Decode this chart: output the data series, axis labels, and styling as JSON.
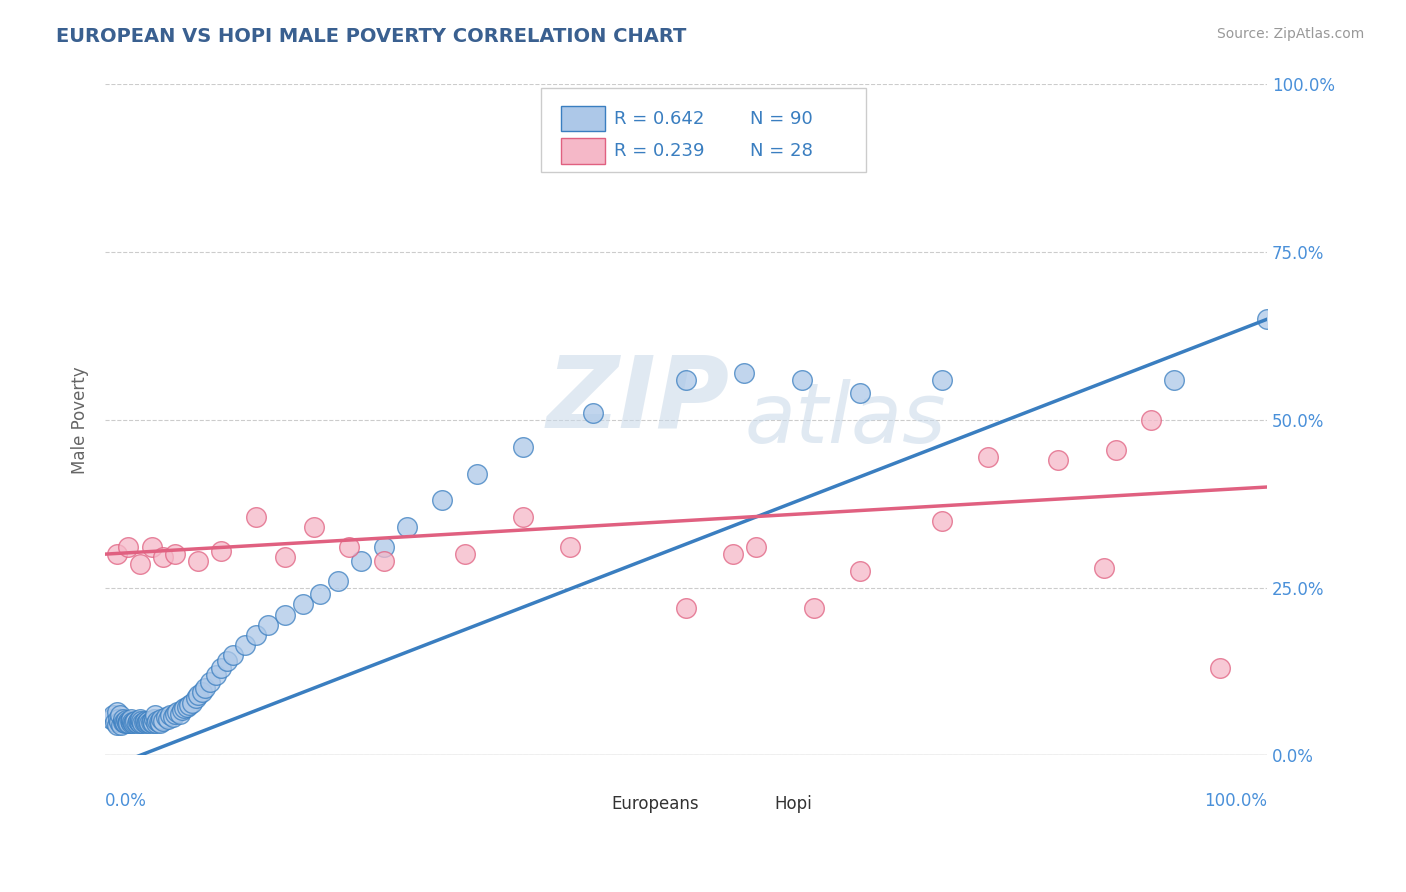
{
  "title": "EUROPEAN VS HOPI MALE POVERTY CORRELATION CHART",
  "source": "Source: ZipAtlas.com",
  "ylabel": "Male Poverty",
  "xlim": [
    0,
    1
  ],
  "ylim": [
    0,
    1
  ],
  "ytick_labels": [
    "0.0%",
    "25.0%",
    "50.0%",
    "75.0%",
    "100.0%"
  ],
  "ytick_positions": [
    0,
    0.25,
    0.5,
    0.75,
    1.0
  ],
  "xtick_labels": [
    "0.0%",
    "100.0%"
  ],
  "european_color": "#adc8e8",
  "hopi_color": "#f5b8c8",
  "european_line_color": "#3a7ec0",
  "hopi_line_color": "#e06080",
  "watermark_zip": "ZIP",
  "watermark_atlas": "atlas",
  "legend_R_european": "R = 0.642",
  "legend_N_european": "N = 90",
  "legend_R_hopi": "R = 0.239",
  "legend_N_hopi": "N = 28",
  "eu_line_x0": 0.0,
  "eu_line_y0": -0.02,
  "eu_line_x1": 1.0,
  "eu_line_y1": 0.65,
  "ho_line_x0": 0.0,
  "ho_line_y0": 0.3,
  "ho_line_x1": 1.0,
  "ho_line_y1": 0.4,
  "european_scatter_x": [
    0.005,
    0.007,
    0.008,
    0.01,
    0.01,
    0.011,
    0.012,
    0.013,
    0.014,
    0.015,
    0.015,
    0.016,
    0.017,
    0.018,
    0.019,
    0.02,
    0.02,
    0.021,
    0.022,
    0.022,
    0.023,
    0.024,
    0.025,
    0.026,
    0.027,
    0.028,
    0.029,
    0.03,
    0.03,
    0.031,
    0.032,
    0.033,
    0.034,
    0.035,
    0.036,
    0.037,
    0.038,
    0.039,
    0.04,
    0.041,
    0.042,
    0.043,
    0.044,
    0.045,
    0.046,
    0.047,
    0.048,
    0.05,
    0.052,
    0.054,
    0.056,
    0.058,
    0.06,
    0.062,
    0.064,
    0.066,
    0.068,
    0.07,
    0.072,
    0.075,
    0.078,
    0.08,
    0.083,
    0.086,
    0.09,
    0.095,
    0.1,
    0.105,
    0.11,
    0.12,
    0.13,
    0.14,
    0.155,
    0.17,
    0.185,
    0.2,
    0.22,
    0.24,
    0.26,
    0.29,
    0.32,
    0.36,
    0.42,
    0.5,
    0.55,
    0.6,
    0.65,
    0.72,
    0.92,
    1.0
  ],
  "european_scatter_y": [
    0.055,
    0.06,
    0.05,
    0.045,
    0.065,
    0.055,
    0.05,
    0.06,
    0.045,
    0.05,
    0.055,
    0.05,
    0.048,
    0.053,
    0.048,
    0.052,
    0.048,
    0.052,
    0.048,
    0.055,
    0.05,
    0.048,
    0.05,
    0.052,
    0.048,
    0.052,
    0.05,
    0.048,
    0.055,
    0.052,
    0.048,
    0.05,
    0.052,
    0.048,
    0.05,
    0.052,
    0.048,
    0.05,
    0.052,
    0.048,
    0.055,
    0.06,
    0.048,
    0.052,
    0.05,
    0.048,
    0.055,
    0.052,
    0.058,
    0.055,
    0.06,
    0.058,
    0.062,
    0.065,
    0.062,
    0.068,
    0.07,
    0.072,
    0.075,
    0.078,
    0.085,
    0.09,
    0.095,
    0.1,
    0.11,
    0.12,
    0.13,
    0.14,
    0.15,
    0.165,
    0.18,
    0.195,
    0.21,
    0.225,
    0.24,
    0.26,
    0.29,
    0.31,
    0.34,
    0.38,
    0.42,
    0.46,
    0.51,
    0.56,
    0.57,
    0.56,
    0.54,
    0.56,
    0.56,
    0.65
  ],
  "hopi_scatter_x": [
    0.01,
    0.02,
    0.03,
    0.04,
    0.05,
    0.06,
    0.08,
    0.1,
    0.13,
    0.155,
    0.18,
    0.21,
    0.24,
    0.31,
    0.36,
    0.4,
    0.5,
    0.54,
    0.56,
    0.61,
    0.65,
    0.72,
    0.76,
    0.82,
    0.86,
    0.87,
    0.9,
    0.96
  ],
  "hopi_scatter_y": [
    0.3,
    0.31,
    0.285,
    0.31,
    0.295,
    0.3,
    0.29,
    0.305,
    0.355,
    0.295,
    0.34,
    0.31,
    0.29,
    0.3,
    0.355,
    0.31,
    0.22,
    0.3,
    0.31,
    0.22,
    0.275,
    0.35,
    0.445,
    0.44,
    0.28,
    0.455,
    0.5,
    0.13
  ]
}
